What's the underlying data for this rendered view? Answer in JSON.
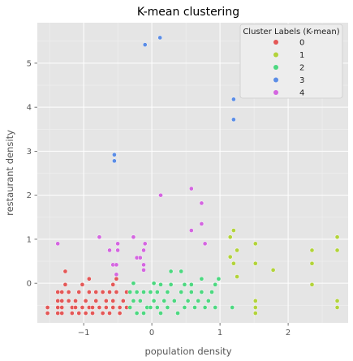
{
  "chart_data": {
    "type": "scatter",
    "title": "K-mean clustering",
    "xlabel": "population density",
    "ylabel": "restaurant density",
    "xlim": [
      -1.68,
      2.88
    ],
    "ylim": [
      -0.9,
      5.92
    ],
    "xticks": [
      -1,
      0,
      1,
      2
    ],
    "yticks": [
      0,
      1,
      2,
      3,
      4,
      5
    ],
    "grid": true,
    "legend": {
      "title": "Cluster Labels (K-mean)",
      "position": "top-right"
    },
    "series": [
      {
        "name": "0",
        "color": "#e45756",
        "points": [
          [
            -1.53,
            -0.55
          ],
          [
            -1.53,
            -0.68
          ],
          [
            -1.38,
            -0.2
          ],
          [
            -1.38,
            -0.4
          ],
          [
            -1.38,
            -0.55
          ],
          [
            -1.38,
            -0.68
          ],
          [
            -1.32,
            -0.2
          ],
          [
            -1.32,
            -0.4
          ],
          [
            -1.32,
            -0.55
          ],
          [
            -1.32,
            -0.68
          ],
          [
            -1.27,
            0.27
          ],
          [
            -1.27,
            -0.03
          ],
          [
            -1.22,
            -0.2
          ],
          [
            -1.22,
            -0.4
          ],
          [
            -1.17,
            -0.55
          ],
          [
            -1.17,
            -0.68
          ],
          [
            -1.12,
            -0.4
          ],
          [
            -1.12,
            -0.55
          ],
          [
            -1.07,
            -0.2
          ],
          [
            -1.07,
            -0.68
          ],
          [
            -1.02,
            -0.03
          ],
          [
            -1.02,
            -0.55
          ],
          [
            -0.97,
            -0.4
          ],
          [
            -0.97,
            -0.68
          ],
          [
            -0.92,
            0.1
          ],
          [
            -0.92,
            -0.2
          ],
          [
            -0.92,
            -0.55
          ],
          [
            -0.87,
            -0.55
          ],
          [
            -0.87,
            -0.68
          ],
          [
            -0.82,
            -0.2
          ],
          [
            -0.82,
            -0.4
          ],
          [
            -0.77,
            -0.55
          ],
          [
            -0.72,
            -0.2
          ],
          [
            -0.72,
            -0.68
          ],
          [
            -0.67,
            -0.4
          ],
          [
            -0.67,
            -0.55
          ],
          [
            -0.62,
            -0.2
          ],
          [
            -0.62,
            -0.68
          ],
          [
            -0.57,
            -0.03
          ],
          [
            -0.57,
            -0.4
          ],
          [
            -0.57,
            -0.55
          ],
          [
            -0.52,
            0.1
          ],
          [
            -0.52,
            -0.2
          ],
          [
            -0.47,
            -0.55
          ],
          [
            -0.47,
            -0.68
          ],
          [
            -0.42,
            -0.4
          ],
          [
            -0.37,
            -0.55
          ],
          [
            -0.37,
            -0.2
          ]
        ]
      },
      {
        "name": "1",
        "color": "#b2d33a",
        "points": [
          [
            1.15,
            1.05
          ],
          [
            1.15,
            0.6
          ],
          [
            1.2,
            1.2
          ],
          [
            1.2,
            0.45
          ],
          [
            1.25,
            0.75
          ],
          [
            1.25,
            0.15
          ],
          [
            1.52,
            0.9
          ],
          [
            1.52,
            0.45
          ],
          [
            1.52,
            -0.4
          ],
          [
            1.52,
            -0.55
          ],
          [
            1.52,
            -0.68
          ],
          [
            1.78,
            0.3
          ],
          [
            2.35,
            0.75
          ],
          [
            2.35,
            0.45
          ],
          [
            2.35,
            -0.03
          ],
          [
            2.72,
            1.05
          ],
          [
            2.72,
            0.75
          ],
          [
            2.72,
            -0.4
          ],
          [
            2.72,
            -0.55
          ]
        ]
      },
      {
        "name": "2",
        "color": "#4cd880",
        "points": [
          [
            -0.32,
            -0.2
          ],
          [
            -0.32,
            -0.55
          ],
          [
            -0.27,
            0.0
          ],
          [
            -0.27,
            -0.4
          ],
          [
            -0.22,
            -0.2
          ],
          [
            -0.22,
            -0.68
          ],
          [
            -0.17,
            -0.4
          ],
          [
            -0.12,
            -0.2
          ],
          [
            -0.12,
            -0.68
          ],
          [
            -0.07,
            -0.55
          ],
          [
            -0.02,
            -0.2
          ],
          [
            -0.02,
            -0.55
          ],
          [
            0.03,
            0.0
          ],
          [
            0.03,
            -0.4
          ],
          [
            0.08,
            -0.2
          ],
          [
            0.08,
            -0.55
          ],
          [
            0.13,
            -0.68
          ],
          [
            0.13,
            -0.03
          ],
          [
            0.18,
            -0.4
          ],
          [
            0.23,
            -0.2
          ],
          [
            0.23,
            -0.55
          ],
          [
            0.28,
            0.27
          ],
          [
            0.28,
            -0.03
          ],
          [
            0.33,
            -0.4
          ],
          [
            0.38,
            -0.68
          ],
          [
            0.43,
            -0.2
          ],
          [
            0.43,
            0.27
          ],
          [
            0.48,
            -0.03
          ],
          [
            0.48,
            -0.55
          ],
          [
            0.53,
            -0.4
          ],
          [
            0.58,
            -0.2
          ],
          [
            0.58,
            -0.03
          ],
          [
            0.63,
            -0.55
          ],
          [
            0.68,
            -0.4
          ],
          [
            0.73,
            -0.2
          ],
          [
            0.73,
            0.1
          ],
          [
            0.78,
            -0.55
          ],
          [
            0.83,
            -0.4
          ],
          [
            0.88,
            -0.2
          ],
          [
            0.93,
            -0.03
          ],
          [
            0.93,
            -0.55
          ],
          [
            0.98,
            0.1
          ],
          [
            1.18,
            -0.55
          ]
        ]
      },
      {
        "name": "3",
        "color": "#5b8de6",
        "points": [
          [
            -0.55,
            2.92
          ],
          [
            -0.55,
            2.78
          ],
          [
            -0.1,
            5.42
          ],
          [
            0.12,
            5.58
          ],
          [
            1.2,
            4.18
          ],
          [
            1.2,
            3.72
          ]
        ]
      },
      {
        "name": "4",
        "color": "#d466e0",
        "points": [
          [
            -1.38,
            0.9
          ],
          [
            -0.77,
            1.05
          ],
          [
            -0.62,
            0.75
          ],
          [
            -0.57,
            0.42
          ],
          [
            -0.52,
            0.42
          ],
          [
            -0.52,
            0.2
          ],
          [
            -0.5,
            0.9
          ],
          [
            -0.5,
            0.75
          ],
          [
            -0.27,
            1.05
          ],
          [
            -0.22,
            0.58
          ],
          [
            -0.17,
            0.58
          ],
          [
            -0.12,
            0.75
          ],
          [
            -0.1,
            0.9
          ],
          [
            -0.12,
            0.42
          ],
          [
            -0.12,
            0.3
          ],
          [
            0.13,
            2.0
          ],
          [
            0.58,
            2.15
          ],
          [
            0.58,
            1.2
          ],
          [
            0.73,
            1.82
          ],
          [
            0.73,
            1.35
          ],
          [
            0.78,
            0.9
          ]
        ]
      }
    ]
  }
}
